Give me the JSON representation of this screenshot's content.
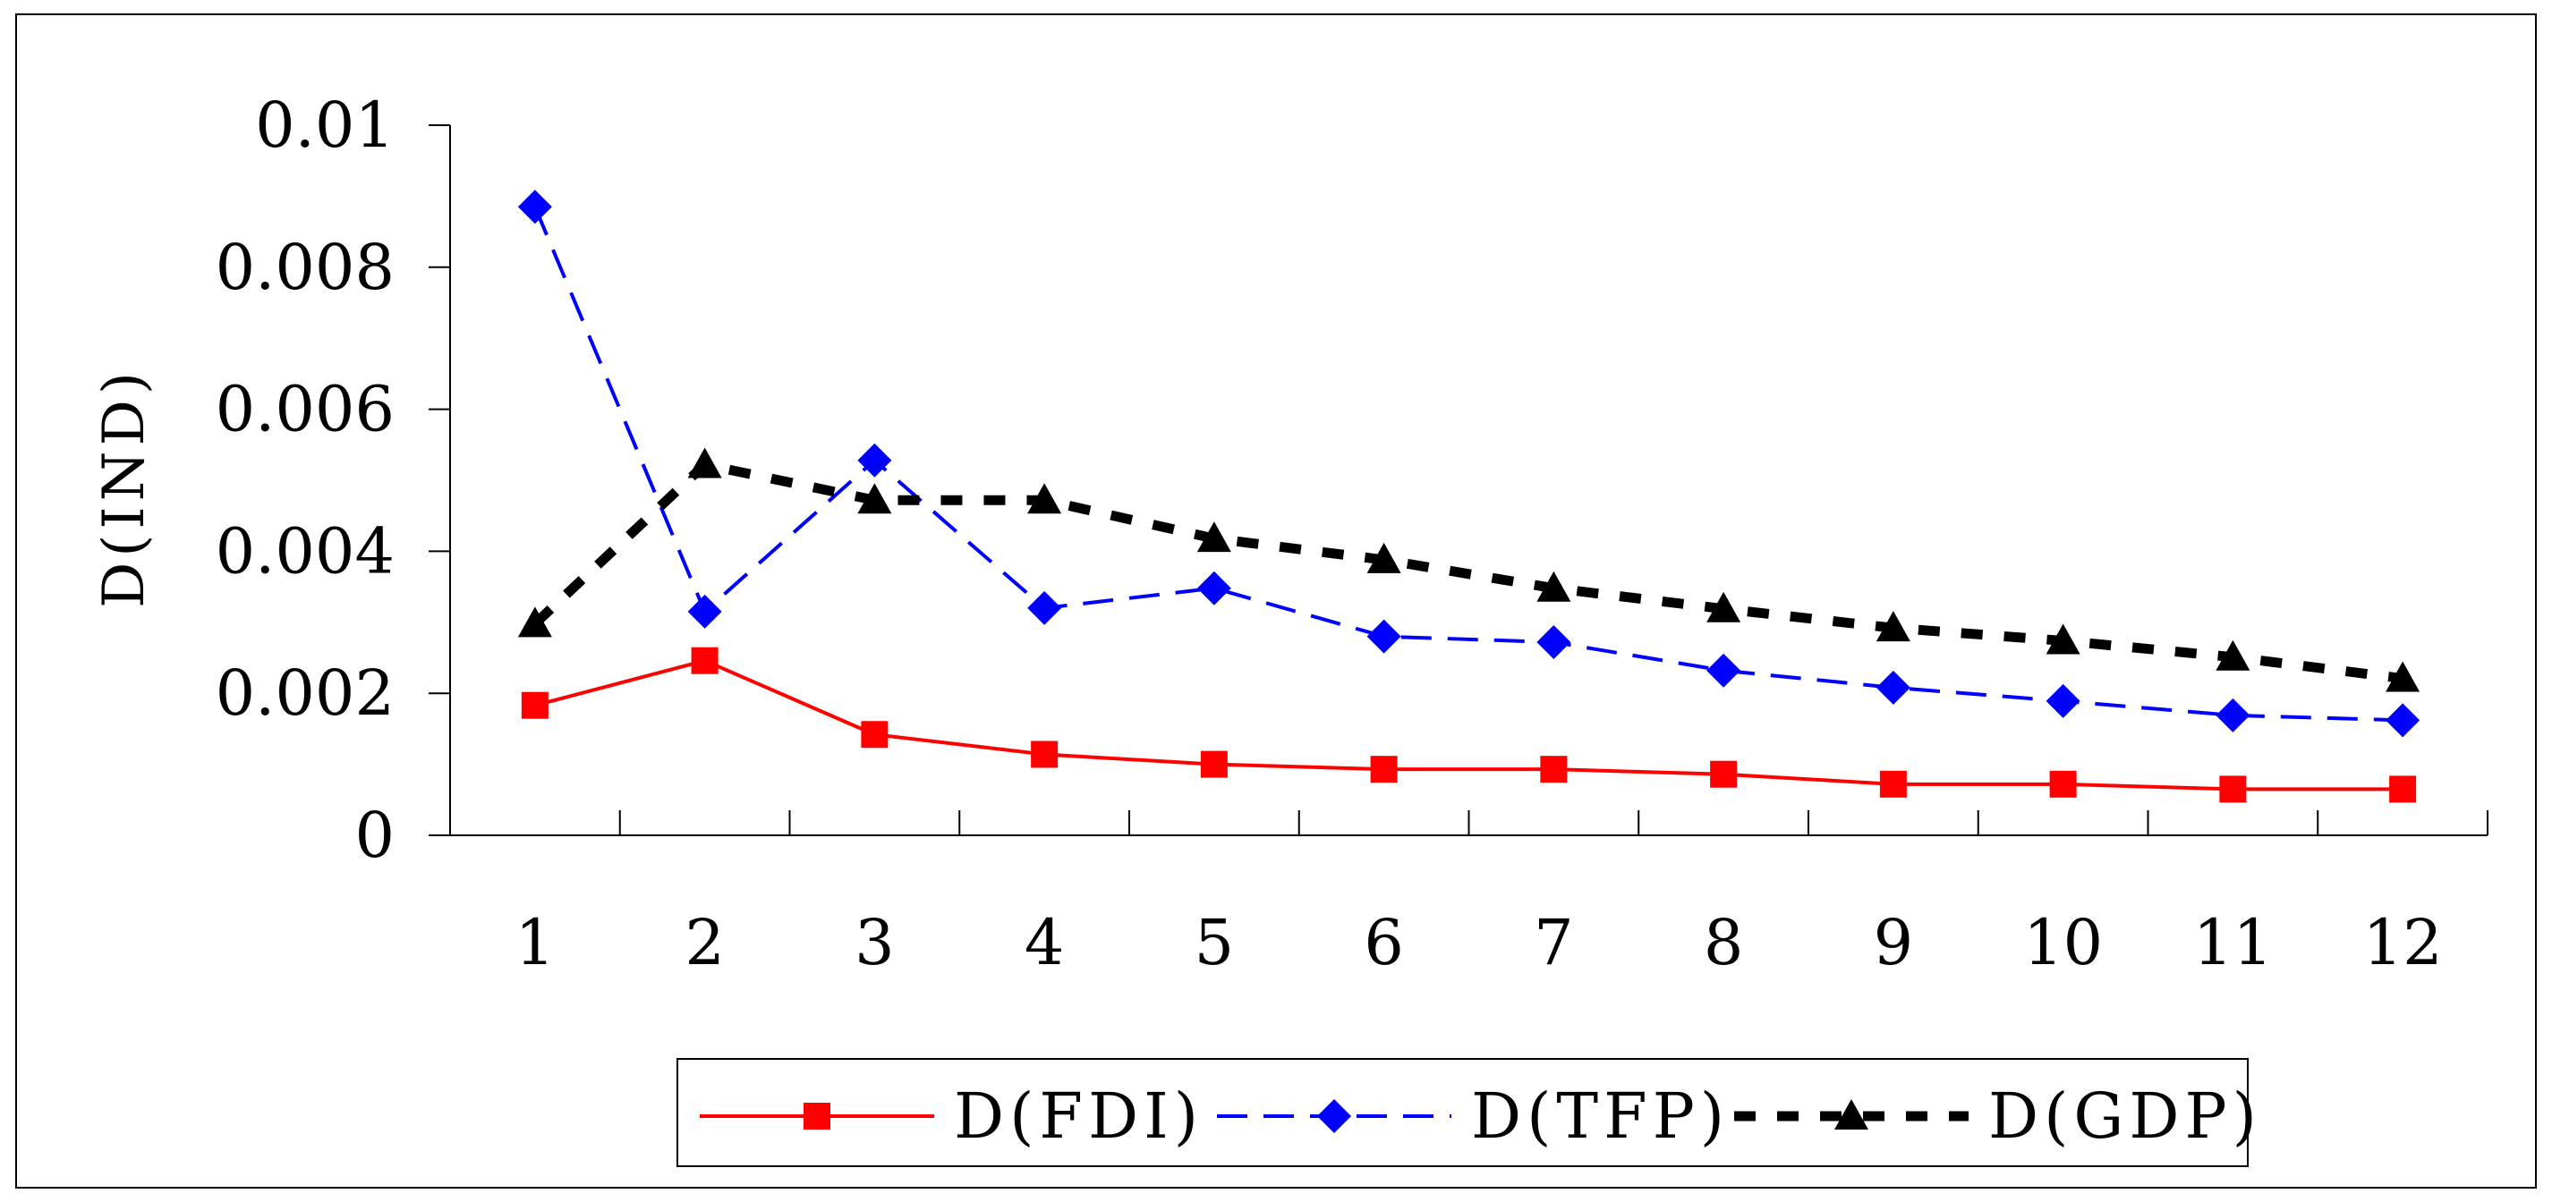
{
  "chart_data": {
    "type": "line",
    "title": "",
    "xlabel": "",
    "ylabel": "D(IND)",
    "categories": [
      "1",
      "2",
      "3",
      "4",
      "5",
      "6",
      "7",
      "8",
      "9",
      "10",
      "11",
      "12"
    ],
    "ylim": [
      0,
      0.01
    ],
    "yticks": [
      0,
      0.002,
      0.004,
      0.006,
      0.008,
      0.01
    ],
    "ytick_labels": [
      "0",
      "0.002",
      "0.004",
      "0.006",
      "0.008",
      "0.01"
    ],
    "grid": false,
    "legend_position": "bottom",
    "series": [
      {
        "name": "D(FDI)",
        "color": "#ff0000",
        "line_style": "solid",
        "marker": "square",
        "values": [
          0.00183,
          0.00246,
          0.00142,
          0.00114,
          0.001,
          0.00093,
          0.00093,
          0.00086,
          0.00072,
          0.00072,
          0.00065,
          0.00065
        ]
      },
      {
        "name": "D(TFP)",
        "color": "#0000ff",
        "line_style": "dashed",
        "marker": "diamond",
        "values": [
          0.00885,
          0.00315,
          0.00528,
          0.0032,
          0.00348,
          0.0028,
          0.00272,
          0.00232,
          0.00208,
          0.00189,
          0.00169,
          0.00162
        ]
      },
      {
        "name": "D(GDP)",
        "color": "#000000",
        "line_style": "dashed-bold",
        "marker": "triangle",
        "values": [
          0.00298,
          0.00522,
          0.00472,
          0.00472,
          0.00418,
          0.00388,
          0.00348,
          0.00319,
          0.00292,
          0.00274,
          0.00251,
          0.00221
        ]
      }
    ]
  }
}
